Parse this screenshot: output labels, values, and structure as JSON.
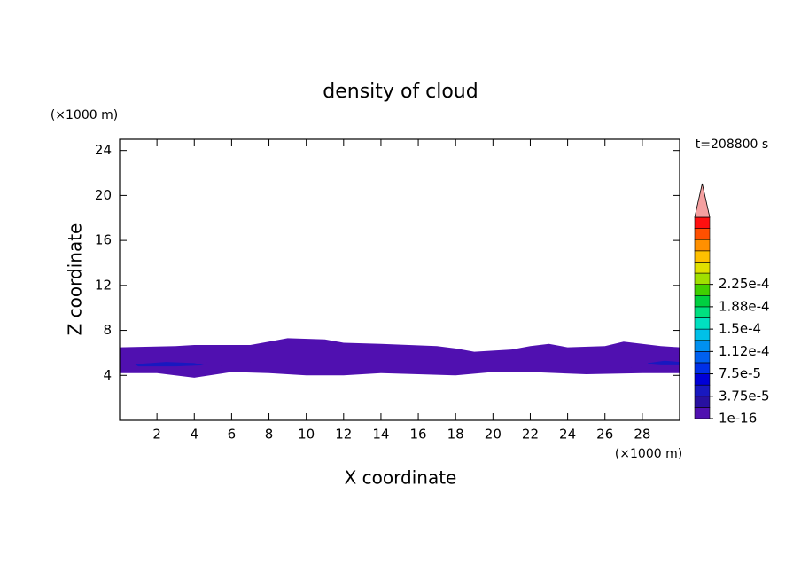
{
  "chart_data": {
    "type": "contour",
    "title": "density of cloud",
    "xlabel": "X coordinate",
    "ylabel": "Z coordinate",
    "xunit": "(×1000 m)",
    "yunit": "(×1000 m)",
    "annotation": "t=208800 s",
    "xlim": [
      0,
      30
    ],
    "ylim": [
      0,
      25
    ],
    "xticks": [
      2,
      4,
      6,
      8,
      10,
      12,
      14,
      16,
      18,
      20,
      22,
      24,
      26,
      28
    ],
    "yticks": [
      4,
      8,
      12,
      16,
      20,
      24
    ],
    "regions": [
      {
        "min": 1e-16,
        "x": [
          0,
          3,
          4,
          7,
          8,
          9,
          11,
          12,
          14,
          17,
          18,
          19,
          21,
          22,
          23,
          24,
          26,
          27,
          28,
          29,
          30,
          30,
          28,
          25,
          22,
          20,
          18,
          16,
          14,
          12,
          10,
          8,
          6,
          4,
          2,
          0
        ],
        "y": [
          6.5,
          6.6,
          6.7,
          6.7,
          7.0,
          7.3,
          7.2,
          6.9,
          6.8,
          6.6,
          6.4,
          6.1,
          6.3,
          6.6,
          6.8,
          6.5,
          6.6,
          7.0,
          6.8,
          6.6,
          6.5,
          4.2,
          4.2,
          4.1,
          4.3,
          4.3,
          4.0,
          4.1,
          4.2,
          4.0,
          4.0,
          4.2,
          4.3,
          3.8,
          4.2,
          4.2
        ]
      },
      {
        "min": 1.875e-05,
        "x": [
          0,
          2,
          4,
          5,
          5.5,
          4,
          2,
          0
        ],
        "y": [
          5.4,
          5.5,
          5.3,
          5.1,
          4.8,
          4.5,
          4.6,
          4.7
        ]
      },
      {
        "min": 1.875e-05,
        "x": [
          7,
          9,
          11,
          12,
          11,
          9,
          7
        ],
        "y": [
          5.2,
          5.4,
          5.5,
          5.3,
          5.1,
          5.1,
          5.0
        ]
      },
      {
        "min": 1.875e-05,
        "x": [
          26,
          28,
          30,
          30,
          28,
          26
        ],
        "y": [
          5.2,
          5.4,
          5.4,
          4.7,
          4.6,
          4.9
        ]
      },
      {
        "min": 5.625e-05,
        "x": [
          0.8,
          2.5,
          4,
          4.5,
          3,
          1
        ],
        "y": [
          5.0,
          5.2,
          5.1,
          4.9,
          4.8,
          4.8
        ]
      },
      {
        "min": 5.625e-05,
        "x": [
          28.3,
          29.2,
          30,
          30,
          29,
          28.3
        ],
        "y": [
          5.1,
          5.3,
          5.2,
          4.9,
          4.9,
          5.0
        ]
      }
    ],
    "colorbar": {
      "clim": [
        1e-16,
        0.0003375
      ],
      "colors": [
        "#5010b0",
        "#2810a0",
        "#1818c0",
        "#0000d8",
        "#0030e8",
        "#0060f0",
        "#0090f0",
        "#00c0e8",
        "#00e0c0",
        "#00e080",
        "#00d040",
        "#40d000",
        "#a0e000",
        "#e0e000",
        "#ffc000",
        "#ff9000",
        "#ff5000",
        "#ff1010"
      ],
      "extend_color": "#f4a0a0",
      "ticks": [
        {
          "value": 1e-16,
          "label": "1e-16"
        },
        {
          "value": 3.75e-05,
          "label": "3.75e-5"
        },
        {
          "value": 7.5e-05,
          "label": "7.5e-5"
        },
        {
          "value": 0.0001125,
          "label": "1.12e-4"
        },
        {
          "value": 0.00015,
          "label": "1.5e-4"
        },
        {
          "value": 0.0001875,
          "label": "1.88e-4"
        },
        {
          "value": 0.000225,
          "label": "2.25e-4"
        }
      ]
    }
  }
}
